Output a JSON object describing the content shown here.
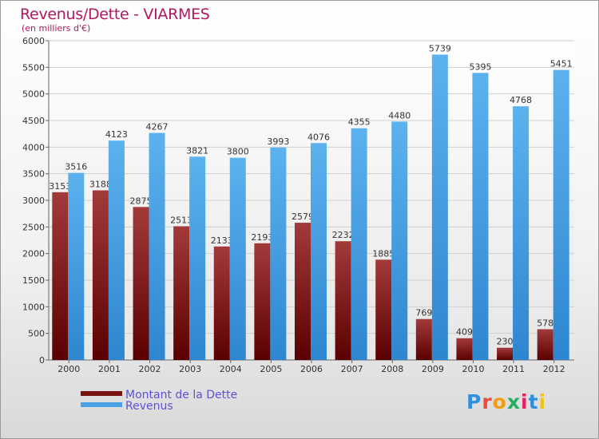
{
  "header": {
    "title": "Revenus/Dette - VIARMES",
    "subtitle": "(en milliers d'€)"
  },
  "legend": {
    "debt_label": "Montant de la Dette",
    "revenue_label": "Revenus"
  },
  "logo": {
    "letters": [
      "P",
      "r",
      "o",
      "x",
      "i",
      "t",
      "i"
    ],
    "colors": [
      "#2f8fdc",
      "#e74c3c",
      "#f39c12",
      "#27ae60",
      "#e91e63",
      "#2f8fdc",
      "#f1c40f"
    ]
  },
  "colors": {
    "debt": "#7a1212",
    "revenue": "#4aa0e4"
  },
  "chart_data": {
    "type": "bar",
    "title": "Revenus/Dette - VIARMES",
    "subtitle": "(en milliers d'€)",
    "categories": [
      "2000",
      "2001",
      "2002",
      "2003",
      "2004",
      "2005",
      "2006",
      "2007",
      "2008",
      "2009",
      "2010",
      "2011",
      "2012"
    ],
    "series": [
      {
        "name": "Montant de la Dette",
        "values": [
          3153,
          3188,
          2875,
          2513,
          2133,
          2193,
          2579,
          2232,
          1885,
          769,
          409,
          230,
          578
        ]
      },
      {
        "name": "Revenus",
        "values": [
          3516,
          4123,
          4267,
          3821,
          3800,
          3993,
          4076,
          4355,
          4480,
          5739,
          5395,
          4768,
          5451
        ]
      }
    ],
    "yticks": [
      0,
      500,
      1000,
      1500,
      2000,
      2500,
      3000,
      3500,
      4000,
      4500,
      5000,
      5500,
      6000
    ],
    "ylim": [
      0,
      6000
    ],
    "grid": true,
    "legend_position": "bottom-left"
  }
}
